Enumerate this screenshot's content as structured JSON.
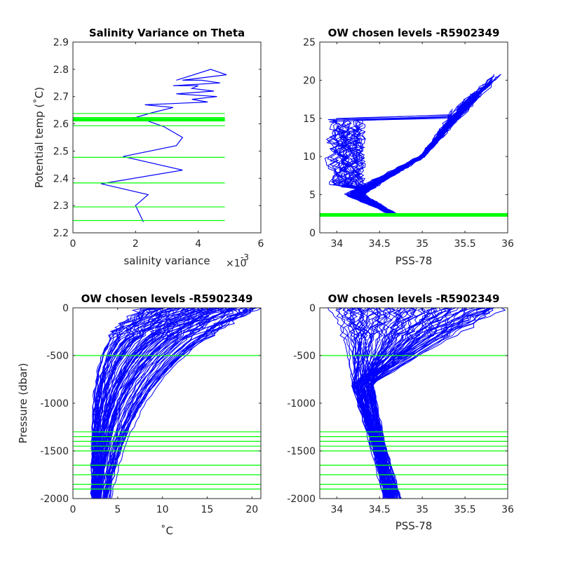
{
  "colors": {
    "profile": "#0000ff",
    "level_line": "#00ff00",
    "axis": "#262626",
    "background": "#ffffff"
  },
  "chart_data": [
    {
      "id": "salinity-variance",
      "type": "line",
      "title": "Salinity Variance on Theta",
      "xlabel": "salinity variance",
      "x_exponent_label": "×10",
      "x_exponent": "-3",
      "ylabel": "Potential temp (˚C)",
      "xlim": [
        0,
        6
      ],
      "ylim": [
        2.2,
        2.9
      ],
      "xticks": [
        "0",
        "2",
        "4",
        "6"
      ],
      "yticks": [
        "2.2",
        "2.3",
        "2.4",
        "2.5",
        "2.6",
        "2.7",
        "2.8",
        "2.9"
      ],
      "series": [
        {
          "x": [
            2.25,
            2.0,
            2.4,
            0.9,
            3.5,
            1.6,
            3.3,
            3.5,
            2.9,
            2.4,
            1.9,
            2.5,
            3.2,
            2.3,
            4.3,
            3.8,
            4.6,
            3.3,
            4.5,
            3.8,
            4.0,
            3.2,
            4.7,
            4.1,
            3.5,
            4.2,
            4.9,
            4.4,
            3.3
          ],
          "y": [
            2.24,
            2.3,
            2.34,
            2.38,
            2.43,
            2.48,
            2.52,
            2.55,
            2.59,
            2.61,
            2.62,
            2.64,
            2.66,
            2.67,
            2.68,
            2.69,
            2.7,
            2.71,
            2.72,
            2.73,
            2.74,
            2.74,
            2.75,
            2.76,
            2.76,
            2.77,
            2.78,
            2.8,
            2.76
          ]
        }
      ],
      "levels": [
        {
          "y": 2.245,
          "thick": false
        },
        {
          "y": 2.295,
          "thick": false
        },
        {
          "y": 2.383,
          "thick": false
        },
        {
          "y": 2.477,
          "thick": false
        },
        {
          "y": 2.593,
          "thick": false
        },
        {
          "y": 2.612,
          "thick": true
        },
        {
          "y": 2.618,
          "thick": true
        },
        {
          "y": 2.623,
          "thick": false
        },
        {
          "y": 2.638,
          "thick": false
        }
      ]
    },
    {
      "id": "theta-salinity",
      "type": "line",
      "title": "OW chosen levels -R5902349",
      "xlabel": "PSS-78",
      "ylabel": "",
      "xlim": [
        33.8,
        36
      ],
      "ylim": [
        0,
        25
      ],
      "xticks": [
        "34",
        "34.5",
        "35",
        "35.5",
        "36"
      ],
      "yticks": [
        "0",
        "5",
        "10",
        "15",
        "20",
        "25"
      ],
      "profile_count": 90,
      "levels": [
        {
          "y": 2.25,
          "thick": true
        },
        {
          "y": 2.45,
          "thick": true
        }
      ]
    },
    {
      "id": "pressure-temperature",
      "type": "line",
      "title": "OW chosen levels -R5902349",
      "xlabel": "˚C",
      "ylabel": "Pressure (dbar)",
      "xlim": [
        0,
        21
      ],
      "ylim": [
        -2000,
        0
      ],
      "xticks": [
        "0",
        "5",
        "10",
        "15",
        "20"
      ],
      "yticks": [
        "-2000",
        "-1500",
        "-1000",
        "-500",
        "0"
      ],
      "profile_count": 90,
      "levels": [
        {
          "y": -500
        },
        {
          "y": -1300
        },
        {
          "y": -1350
        },
        {
          "y": -1400
        },
        {
          "y": -1450
        },
        {
          "y": -1500
        },
        {
          "y": -1650
        },
        {
          "y": -1750
        },
        {
          "y": -1850
        },
        {
          "y": -1900
        }
      ]
    },
    {
      "id": "pressure-salinity",
      "type": "line",
      "title": "OW chosen levels -R5902349",
      "xlabel": "PSS-78",
      "ylabel": "",
      "xlim": [
        33.8,
        36
      ],
      "ylim": [
        -2000,
        0
      ],
      "xticks": [
        "34",
        "34.5",
        "35",
        "35.5",
        "36"
      ],
      "yticks": [
        "-2000",
        "-1500",
        "-1000",
        "-500",
        "0"
      ],
      "profile_count": 90,
      "levels": [
        {
          "y": -500
        },
        {
          "y": -1300
        },
        {
          "y": -1350
        },
        {
          "y": -1400
        },
        {
          "y": -1450
        },
        {
          "y": -1500
        },
        {
          "y": -1650
        },
        {
          "y": -1750
        },
        {
          "y": -1850
        },
        {
          "y": -1900
        }
      ]
    }
  ]
}
